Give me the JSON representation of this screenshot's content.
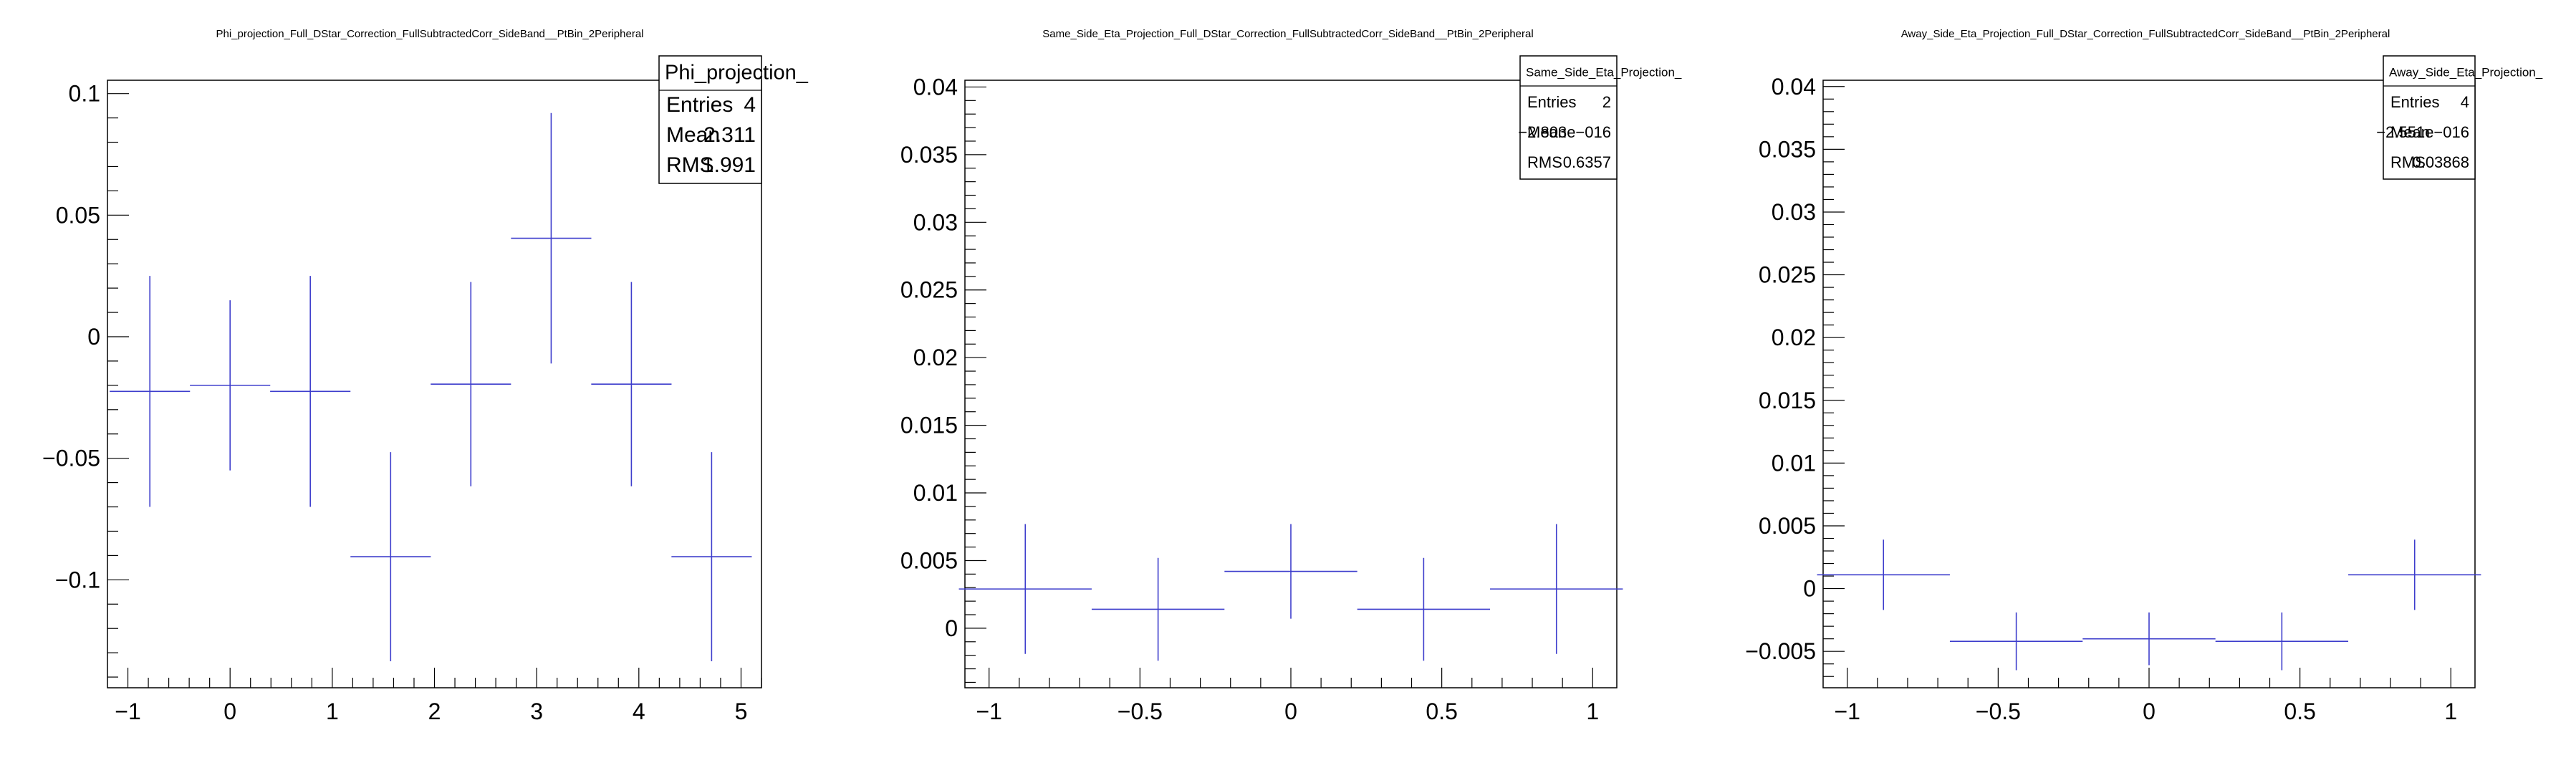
{
  "chart_data": [
    {
      "type": "scatter",
      "title": "Phi_projection_Full_DStar_Correction_FullSubtractedCorr_SideBand__PtBin_2Peripheral",
      "xlim": [
        -1.2,
        5.2
      ],
      "ylim": [
        -0.1444,
        0.1055
      ],
      "xticks": [
        -1,
        0,
        1,
        2,
        3,
        4,
        5
      ],
      "xtick_labels": [
        "−1",
        "0",
        "1",
        "2",
        "3",
        "4",
        "5"
      ],
      "yticks": [
        -0.1,
        -0.05,
        0,
        0.05,
        0.1
      ],
      "ytick_labels": [
        "−0.1",
        "−0.05",
        "0",
        "0.05",
        "0.1"
      ],
      "line_color": "#3d3dcc",
      "points": [
        {
          "x": -0.785,
          "y": -0.0225,
          "xerr": 0.393,
          "yerr": 0.0475
        },
        {
          "x": 0.0,
          "y": -0.02,
          "xerr": 0.393,
          "yerr": 0.035
        },
        {
          "x": 0.785,
          "y": -0.0225,
          "xerr": 0.393,
          "yerr": 0.0475
        },
        {
          "x": 1.571,
          "y": -0.0905,
          "xerr": 0.393,
          "yerr": 0.043
        },
        {
          "x": 2.356,
          "y": -0.0195,
          "xerr": 0.393,
          "yerr": 0.042
        },
        {
          "x": 3.142,
          "y": 0.0405,
          "xerr": 0.393,
          "yerr": 0.0515
        },
        {
          "x": 3.927,
          "y": -0.0195,
          "xerr": 0.393,
          "yerr": 0.042
        },
        {
          "x": 4.712,
          "y": -0.0905,
          "xerr": 0.393,
          "yerr": 0.043
        }
      ],
      "stats": {
        "name": "Phi_projection_",
        "rows": [
          {
            "label": "Entries",
            "value": "4"
          },
          {
            "label": "Mean",
            "value": "2.311"
          },
          {
            "label": "RMS",
            "value": "1.991"
          }
        ]
      }
    },
    {
      "type": "scatter",
      "title": "Same_Side_Eta_Projection_Full_DStar_Correction_FullSubtractedCorr_SideBand__PtBin_2Peripheral",
      "xlim": [
        -1.08,
        1.08
      ],
      "ylim": [
        -0.0044,
        0.0405
      ],
      "xticks": [
        -1,
        -0.5,
        0,
        0.5,
        1
      ],
      "xtick_labels": [
        "−1",
        "−0.5",
        "0",
        "0.5",
        "1"
      ],
      "yticks": [
        0,
        0.005,
        0.01,
        0.015,
        0.02,
        0.025,
        0.03,
        0.035,
        0.04
      ],
      "ytick_labels": [
        "0",
        "0.005",
        "0.01",
        "0.015",
        "0.02",
        "0.025",
        "0.03",
        "0.035",
        "0.04"
      ],
      "line_color": "#3d3dcc",
      "points": [
        {
          "x": -0.88,
          "y": 0.0029,
          "xerr": 0.22,
          "yerr": 0.0048
        },
        {
          "x": -0.44,
          "y": 0.0014,
          "xerr": 0.22,
          "yerr": 0.0038
        },
        {
          "x": 0.0,
          "y": 0.0042,
          "xerr": 0.22,
          "yerr": 0.0035
        },
        {
          "x": 0.44,
          "y": 0.0014,
          "xerr": 0.22,
          "yerr": 0.0038
        },
        {
          "x": 0.88,
          "y": 0.0029,
          "xerr": 0.22,
          "yerr": 0.0048
        }
      ],
      "stats": {
        "name": "Same_Side_Eta_Projection_",
        "rows": [
          {
            "label": "Entries",
            "value": "2"
          },
          {
            "label": "Mean",
            "value": "−2.803e−016"
          },
          {
            "label": "RMS",
            "value": "0.6357"
          }
        ]
      }
    },
    {
      "type": "scatter",
      "title": "Away_Side_Eta_Projection_Full_DStar_Correction_FullSubtractedCorr_SideBand__PtBin_2Peripheral",
      "xlim": [
        -1.08,
        1.08
      ],
      "ylim": [
        -0.0079,
        0.0405
      ],
      "xticks": [
        -1,
        -0.5,
        0,
        0.5,
        1
      ],
      "xtick_labels": [
        "−1",
        "−0.5",
        "0",
        "0.5",
        "1"
      ],
      "yticks": [
        -0.005,
        0,
        0.005,
        0.01,
        0.015,
        0.02,
        0.025,
        0.03,
        0.035,
        0.04
      ],
      "ytick_labels": [
        "−0.005",
        "0",
        "0.005",
        "0.01",
        "0.015",
        "0.02",
        "0.025",
        "0.03",
        "0.035",
        "0.04"
      ],
      "line_color": "#3d3dcc",
      "points": [
        {
          "x": -0.88,
          "y": 0.0011,
          "xerr": 0.22,
          "yerr": 0.0028
        },
        {
          "x": -0.44,
          "y": -0.0042,
          "xerr": 0.22,
          "yerr": 0.0023
        },
        {
          "x": 0.0,
          "y": -0.004,
          "xerr": 0.22,
          "yerr": 0.0021
        },
        {
          "x": 0.44,
          "y": -0.0042,
          "xerr": 0.22,
          "yerr": 0.0023
        },
        {
          "x": 0.88,
          "y": 0.0011,
          "xerr": 0.22,
          "yerr": 0.0028
        }
      ],
      "stats": {
        "name": "Away_Side_Eta_Projection_",
        "rows": [
          {
            "label": "Entries",
            "value": "4"
          },
          {
            "label": "Mean",
            "value": "−2.551e−016"
          },
          {
            "label": "RMS",
            "value": "0.03868"
          }
        ]
      }
    }
  ]
}
